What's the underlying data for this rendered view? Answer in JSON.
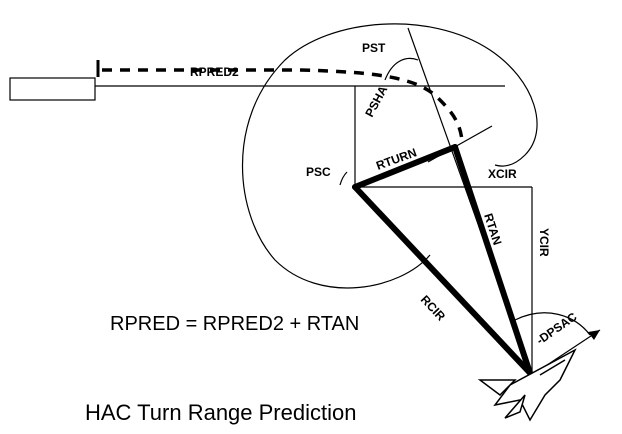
{
  "labels": {
    "rpred2": "RPRED2",
    "pst": "PST",
    "psha": "PSHA",
    "rturn": "RTURN",
    "psc": "PSC",
    "xcir": "XCIR",
    "rtan": "RTAN",
    "ycir": "YCIR",
    "rcir": "RCIR",
    "dpsac": "-DPSAC"
  },
  "equation": "RPRED = RPRED2 + RTAN",
  "title": "HAC Turn Range Prediction"
}
